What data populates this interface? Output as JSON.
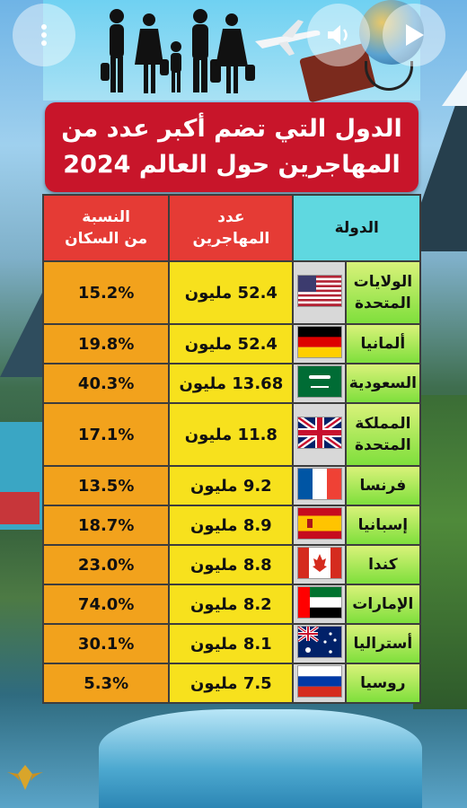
{
  "header": {
    "title_line1": "الدول التي تضم أكبر عدد من",
    "title_line2": "المهاجرين حول العالم 2024"
  },
  "controls": {
    "menu_icon": "more-vertical-icon",
    "sound_icon": "speaker-icon",
    "play_icon": "play-icon"
  },
  "table": {
    "headers": {
      "country": "الدولة",
      "migrants_l1": "عدد",
      "migrants_l2": "المهاجرين",
      "pct_l1": "النسبة",
      "pct_l2": "من السكان"
    },
    "rows": [
      {
        "l1": "الولايات",
        "l2": "المتحدة",
        "migrants": "52.4 مليون",
        "pct": "15.2%",
        "flag": "usa"
      },
      {
        "l1": "ألمانيا",
        "l2": "",
        "migrants": "52.4 مليون",
        "pct": "19.8%",
        "flag": "germany"
      },
      {
        "l1": "السعودية",
        "l2": "",
        "migrants": "13.68 مليون",
        "pct": "40.3%",
        "flag": "saudi"
      },
      {
        "l1": "المملكة",
        "l2": "المتحدة",
        "migrants": "11.8 مليون",
        "pct": "17.1%",
        "flag": "uk"
      },
      {
        "l1": "فرنسا",
        "l2": "",
        "migrants": "9.2 مليون",
        "pct": "13.5%",
        "flag": "france"
      },
      {
        "l1": "إسبانيا",
        "l2": "",
        "migrants": "8.9 مليون",
        "pct": "18.7%",
        "flag": "spain"
      },
      {
        "l1": "كندا",
        "l2": "",
        "migrants": "8.8 مليون",
        "pct": "23.0%",
        "flag": "canada"
      },
      {
        "l1": "الإمارات",
        "l2": "",
        "migrants": "8.2 مليون",
        "pct": "74.0%",
        "flag": "uae"
      },
      {
        "l1": "أستراليا",
        "l2": "",
        "migrants": "8.1 مليون",
        "pct": "30.1%",
        "flag": "australia"
      },
      {
        "l1": "روسيا",
        "l2": "",
        "migrants": "7.5 مليون",
        "pct": "5.3%",
        "flag": "russia"
      }
    ]
  },
  "colors": {
    "title_bg": "#c8152a",
    "country_header": "#5fd8e0",
    "num_header": "#e53b35",
    "name_cell": "#7fdf3c",
    "num_cell": "#f7e11d",
    "pct_cell": "#f2a21c"
  }
}
